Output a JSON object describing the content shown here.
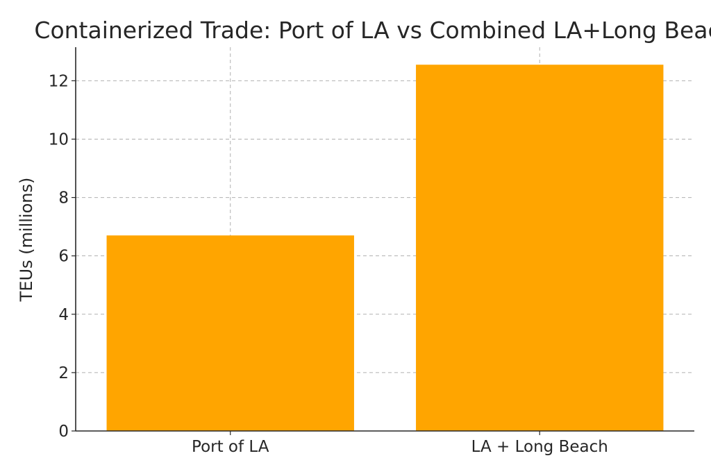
{
  "chart_data": {
    "type": "bar",
    "title": "Containerized Trade: Port of LA vs Combined LA+Long Beach",
    "xlabel": "",
    "ylabel": "TEUs (millions)",
    "categories": [
      "Port of LA",
      "LA + Long Beach"
    ],
    "values": [
      6.7,
      12.55
    ],
    "ylim": [
      0,
      13.15
    ],
    "yticks": [
      0,
      2,
      4,
      6,
      8,
      10,
      12
    ],
    "grid": true,
    "bar_color": "#ffa500"
  }
}
